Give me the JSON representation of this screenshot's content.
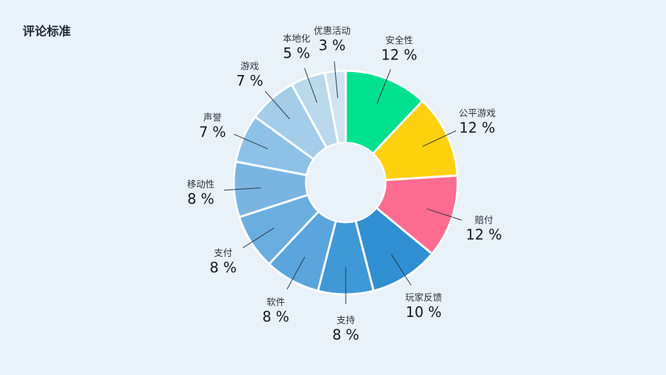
{
  "page": {
    "title": "评论标准"
  },
  "chart_data": {
    "type": "pie",
    "title": "评论标准",
    "unit": "%",
    "categories": [
      "安全性",
      "公平游戏",
      "赔付",
      "玩家反馈",
      "支持",
      "软件",
      "支付",
      "移动性",
      "声誉",
      "游戏",
      "本地化",
      "优惠活动"
    ],
    "values": [
      12,
      12,
      12,
      10,
      8,
      8,
      8,
      8,
      7,
      7,
      5,
      3
    ],
    "colors": [
      "#00e190",
      "#fdd10e",
      "#ff6c92",
      "#2f8fd1",
      "#4098d7",
      "#5aa5dd",
      "#6aaee0",
      "#7ab5e2",
      "#8dc1e8",
      "#a3cde9",
      "#bad9ec",
      "#cfe3f0"
    ],
    "donut": true
  }
}
